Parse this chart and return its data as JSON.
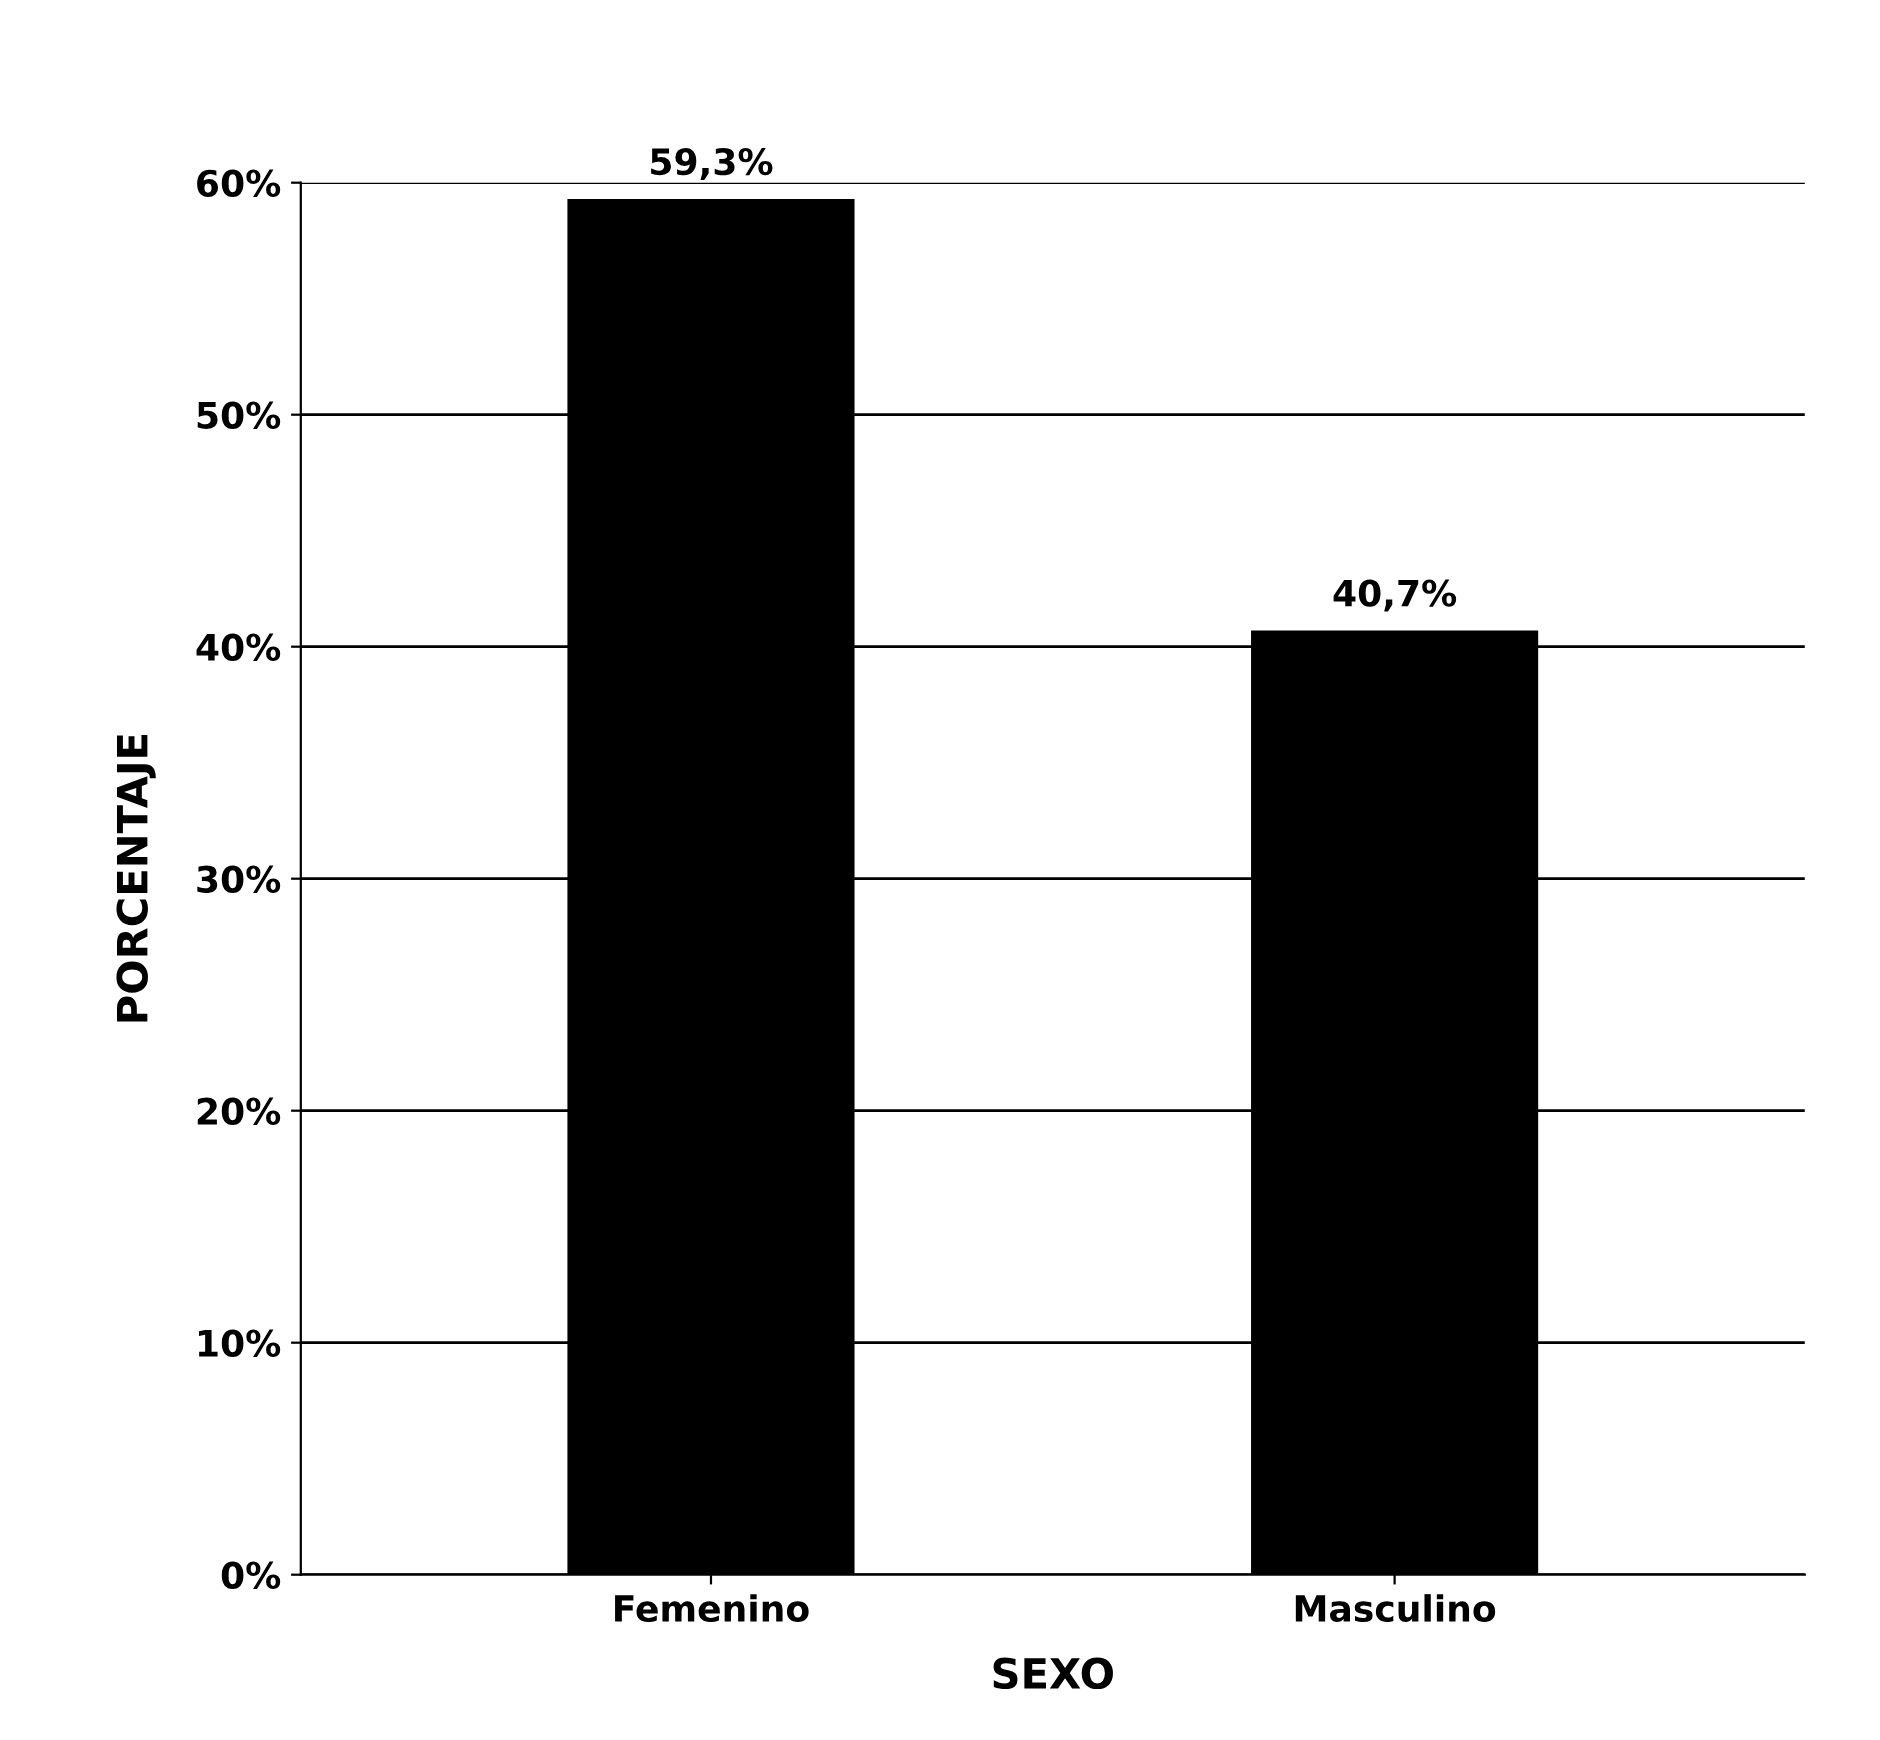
{
  "chart_data": {
    "type": "bar",
    "xlabel": "SEXO",
    "ylabel": "PORCENTAJE",
    "categories": [
      "Femenino",
      "Masculino"
    ],
    "values": [
      59.3,
      40.7
    ],
    "value_labels": [
      "59,3%",
      "40,7%"
    ],
    "color": "#000000",
    "ylim": [
      0,
      60
    ],
    "yticks": [
      {
        "value": 0,
        "label": "0%"
      },
      {
        "value": 10,
        "label": "10%"
      },
      {
        "value": 20,
        "label": "20%"
      },
      {
        "value": 30,
        "label": "30%"
      },
      {
        "value": 40,
        "label": "40%"
      },
      {
        "value": 50,
        "label": "50%"
      },
      {
        "value": 60,
        "label": "60%"
      }
    ],
    "grid": "y",
    "legend": false
  }
}
